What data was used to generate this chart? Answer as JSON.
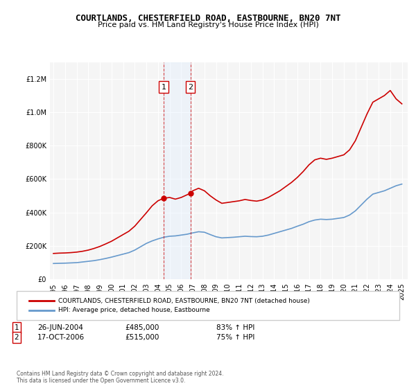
{
  "title": "COURTLANDS, CHESTERFIELD ROAD, EASTBOURNE, BN20 7NT",
  "subtitle": "Price paid vs. HM Land Registry's House Price Index (HPI)",
  "legend_line1": "COURTLANDS, CHESTERFIELD ROAD, EASTBOURNE, BN20 7NT (detached house)",
  "legend_line2": "HPI: Average price, detached house, Eastbourne",
  "footer": "Contains HM Land Registry data © Crown copyright and database right 2024.\nThis data is licensed under the Open Government Licence v3.0.",
  "sale1_date": "26-JUN-2004",
  "sale1_price": 485000,
  "sale1_label": "83% ↑ HPI",
  "sale2_date": "17-OCT-2006",
  "sale2_price": 515000,
  "sale2_label": "75% ↑ HPI",
  "sale1_x": 2004.48,
  "sale2_x": 2006.79,
  "red_color": "#cc0000",
  "blue_color": "#6699cc",
  "shade_color": "#ddeeff",
  "background_color": "#f5f5f5",
  "ylim": [
    0,
    1300000
  ],
  "xlim_start": 1995,
  "xlim_end": 2025.5
}
